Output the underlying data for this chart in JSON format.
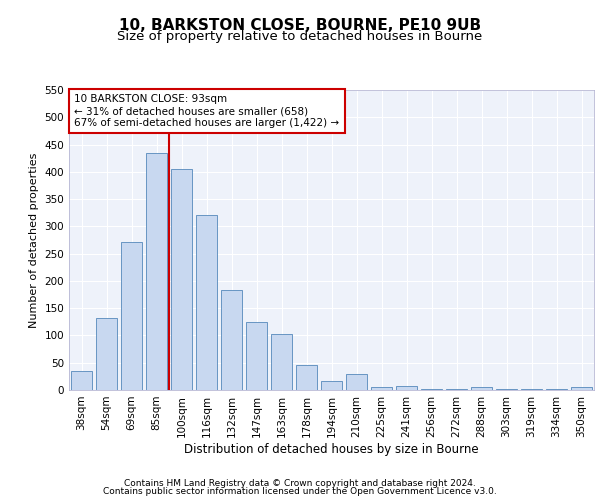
{
  "title_line1": "10, BARKSTON CLOSE, BOURNE, PE10 9UB",
  "title_line2": "Size of property relative to detached houses in Bourne",
  "xlabel": "Distribution of detached houses by size in Bourne",
  "ylabel": "Number of detached properties",
  "footer_line1": "Contains HM Land Registry data © Crown copyright and database right 2024.",
  "footer_line2": "Contains public sector information licensed under the Open Government Licence v3.0.",
  "annotation_line1": "10 BARKSTON CLOSE: 93sqm",
  "annotation_line2": "← 31% of detached houses are smaller (658)",
  "annotation_line3": "67% of semi-detached houses are larger (1,422) →",
  "categories": [
    "38sqm",
    "54sqm",
    "69sqm",
    "85sqm",
    "100sqm",
    "116sqm",
    "132sqm",
    "147sqm",
    "163sqm",
    "178sqm",
    "194sqm",
    "210sqm",
    "225sqm",
    "241sqm",
    "256sqm",
    "272sqm",
    "288sqm",
    "303sqm",
    "319sqm",
    "334sqm",
    "350sqm"
  ],
  "bar_heights": [
    35,
    132,
    271,
    435,
    406,
    320,
    183,
    125,
    102,
    45,
    17,
    30,
    5,
    7,
    2,
    1,
    5,
    2,
    2,
    2,
    5
  ],
  "bar_color": "#c8d8f0",
  "bar_edge_color": "#5588bb",
  "vline_x_index": 3.5,
  "vline_color": "#cc0000",
  "ylim": [
    0,
    550
  ],
  "yticks": [
    0,
    50,
    100,
    150,
    200,
    250,
    300,
    350,
    400,
    450,
    500,
    550
  ],
  "bg_color": "#eef2fa",
  "grid_color": "#ffffff",
  "title1_fontsize": 11,
  "title2_fontsize": 9.5,
  "ylabel_fontsize": 8,
  "xlabel_fontsize": 8.5,
  "tick_fontsize": 7.5,
  "annotation_box_color": "#cc0000",
  "annotation_bg": "#ffffff",
  "annotation_fontsize": 7.5,
  "footer_fontsize": 6.5
}
